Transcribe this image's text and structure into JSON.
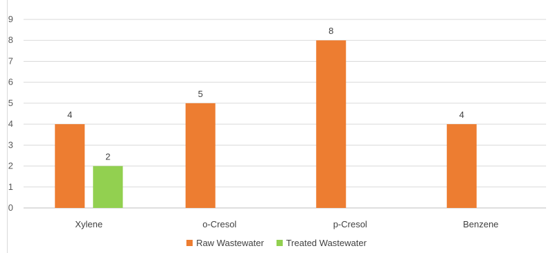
{
  "chart_data": {
    "type": "bar",
    "categories": [
      "Xylene",
      "o-Cresol",
      "p-Cresol",
      "Benzene"
    ],
    "series": [
      {
        "name": "Raw Wastewater",
        "values": [
          4,
          5,
          8,
          4
        ],
        "color": "#ED7D31"
      },
      {
        "name": "Treated Wastewater",
        "values": [
          2,
          null,
          null,
          null
        ],
        "color": "#92D050"
      }
    ],
    "title": "",
    "xlabel": "",
    "ylabel": "",
    "ylim": [
      0,
      9
    ],
    "yticks": [
      0,
      1,
      2,
      3,
      4,
      5,
      6,
      7,
      8,
      9
    ],
    "grid": true,
    "legend_position": "bottom",
    "data_labels": true
  }
}
